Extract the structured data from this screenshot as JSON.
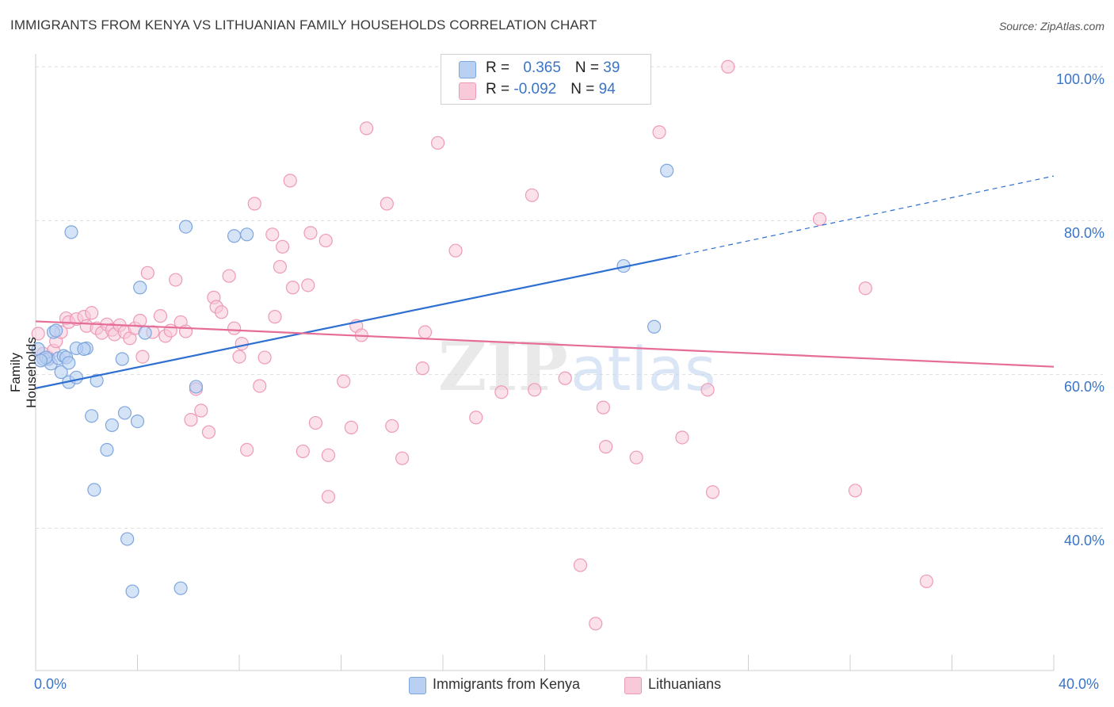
{
  "title": "IMMIGRANTS FROM KENYA VS LITHUANIAN FAMILY HOUSEHOLDS CORRELATION CHART",
  "source": "Source: ZipAtlas.com",
  "watermark": "ZIPatlas",
  "legend": {
    "row1": {
      "r_label": "R = ",
      "r_value": "0.365",
      "n_label": "N = ",
      "n_value": "39"
    },
    "row2": {
      "r_label": "R = ",
      "r_value": "-0.092",
      "n_label": "N = ",
      "n_value": "94"
    }
  },
  "bottom_legend": {
    "series1": "Immigrants from Kenya",
    "series2": "Lithuanians"
  },
  "colors": {
    "kenya_fill": "#b9d0f2",
    "kenya_stroke": "#7ea6de",
    "kenya_line": "#2e6fd1",
    "lith_fill": "#f8c9d8",
    "lith_stroke": "#ee9ab7",
    "lith_line": "#e56d97",
    "grid": "#dddddd",
    "axis_text": "#3a74c8"
  },
  "chart_data": {
    "type": "scatter",
    "title": "IMMIGRANTS FROM KENYA VS LITHUANIAN FAMILY HOUSEHOLDS CORRELATION CHART",
    "xlabel": "",
    "ylabel": "Family Households",
    "x_tick_labels": [
      "0.0%",
      "40.0%"
    ],
    "y_tick_labels": [
      "100.0%",
      "80.0%",
      "60.0%",
      "40.0%"
    ],
    "xlim": [
      0,
      40
    ],
    "ylim": [
      21.5,
      102.5
    ],
    "y_ticks": [
      100,
      80,
      60,
      40
    ],
    "grid": true,
    "legend_position": "top-center",
    "series": [
      {
        "name": "Immigrants from Kenya",
        "R": 0.365,
        "N": 39,
        "trend": {
          "x0": 0,
          "y0": 58.2,
          "x1": 25.2,
          "y1": 75.4,
          "x_dash_end": 40,
          "y_dash_end": 85.8
        },
        "points": [
          [
            0.1,
            63.3
          ],
          [
            0.3,
            62.0
          ],
          [
            0.5,
            62.0
          ],
          [
            0.6,
            61.4
          ],
          [
            0.7,
            65.5
          ],
          [
            0.8,
            65.7
          ],
          [
            0.9,
            62.1
          ],
          [
            1.0,
            60.3
          ],
          [
            1.1,
            62.4
          ],
          [
            1.2,
            62.2
          ],
          [
            1.3,
            61.5
          ],
          [
            1.3,
            59.0
          ],
          [
            1.4,
            78.5
          ],
          [
            1.6,
            59.6
          ],
          [
            2.0,
            63.4
          ],
          [
            2.2,
            54.6
          ],
          [
            2.3,
            45.0
          ],
          [
            2.8,
            50.2
          ],
          [
            3.0,
            53.4
          ],
          [
            3.4,
            62.0
          ],
          [
            3.5,
            55.0
          ],
          [
            3.6,
            38.6
          ],
          [
            3.8,
            31.8
          ],
          [
            4.0,
            53.9
          ],
          [
            4.1,
            71.3
          ],
          [
            4.3,
            65.4
          ],
          [
            5.7,
            32.2
          ],
          [
            5.9,
            79.2
          ],
          [
            6.3,
            58.4
          ],
          [
            7.8,
            78.0
          ],
          [
            8.3,
            78.2
          ],
          [
            2.4,
            59.2
          ],
          [
            1.6,
            63.4
          ],
          [
            0.4,
            62.2
          ],
          [
            0.2,
            61.8
          ],
          [
            1.9,
            63.3
          ],
          [
            23.1,
            74.1
          ],
          [
            24.3,
            66.2
          ],
          [
            24.8,
            86.5
          ]
        ]
      },
      {
        "name": "Lithuanians",
        "R": -0.092,
        "N": 94,
        "trend": {
          "x0": 0,
          "y0": 66.9,
          "x1": 40,
          "y1": 61.0
        },
        "points": [
          [
            0.1,
            65.3
          ],
          [
            0.3,
            62.7
          ],
          [
            0.5,
            62.2
          ],
          [
            0.7,
            63.1
          ],
          [
            0.8,
            64.3
          ],
          [
            1.0,
            65.5
          ],
          [
            1.2,
            67.3
          ],
          [
            1.3,
            66.8
          ],
          [
            1.6,
            67.2
          ],
          [
            1.9,
            67.5
          ],
          [
            2.0,
            66.3
          ],
          [
            2.2,
            68.0
          ],
          [
            2.4,
            66.0
          ],
          [
            2.6,
            65.4
          ],
          [
            2.8,
            66.5
          ],
          [
            3.0,
            65.8
          ],
          [
            3.1,
            65.2
          ],
          [
            3.3,
            66.4
          ],
          [
            3.5,
            65.5
          ],
          [
            3.7,
            64.7
          ],
          [
            3.9,
            66.0
          ],
          [
            4.1,
            67.0
          ],
          [
            4.2,
            62.3
          ],
          [
            4.4,
            73.2
          ],
          [
            4.6,
            65.5
          ],
          [
            4.9,
            67.6
          ],
          [
            5.1,
            65.0
          ],
          [
            5.3,
            65.7
          ],
          [
            5.5,
            72.3
          ],
          [
            5.7,
            66.8
          ],
          [
            5.9,
            65.6
          ],
          [
            6.1,
            54.1
          ],
          [
            6.3,
            58.1
          ],
          [
            6.5,
            55.3
          ],
          [
            6.8,
            52.5
          ],
          [
            7.0,
            70.0
          ],
          [
            7.1,
            68.8
          ],
          [
            7.3,
            68.1
          ],
          [
            7.6,
            72.8
          ],
          [
            7.8,
            66.0
          ],
          [
            8.0,
            62.3
          ],
          [
            8.1,
            64.0
          ],
          [
            8.3,
            50.2
          ],
          [
            8.6,
            82.2
          ],
          [
            8.8,
            58.5
          ],
          [
            9.0,
            62.2
          ],
          [
            9.3,
            78.2
          ],
          [
            9.4,
            67.5
          ],
          [
            9.6,
            74.0
          ],
          [
            9.7,
            76.6
          ],
          [
            10.0,
            85.2
          ],
          [
            10.1,
            71.3
          ],
          [
            10.5,
            50.0
          ],
          [
            10.7,
            71.6
          ],
          [
            10.8,
            78.4
          ],
          [
            11.0,
            53.7
          ],
          [
            11.4,
            77.4
          ],
          [
            11.5,
            49.5
          ],
          [
            11.5,
            44.1
          ],
          [
            12.1,
            59.1
          ],
          [
            12.4,
            53.1
          ],
          [
            12.6,
            66.3
          ],
          [
            12.8,
            65.1
          ],
          [
            13.0,
            92.0
          ],
          [
            13.8,
            82.2
          ],
          [
            14.0,
            53.3
          ],
          [
            14.4,
            49.1
          ],
          [
            15.2,
            60.8
          ],
          [
            15.3,
            65.5
          ],
          [
            15.8,
            90.1
          ],
          [
            16.5,
            76.1
          ],
          [
            17.3,
            54.4
          ],
          [
            17.8,
            100.0
          ],
          [
            18.3,
            57.7
          ],
          [
            19.5,
            83.3
          ],
          [
            19.6,
            58.0
          ],
          [
            20.8,
            59.5
          ],
          [
            21.4,
            35.2
          ],
          [
            22.0,
            27.6
          ],
          [
            22.3,
            55.7
          ],
          [
            22.4,
            50.6
          ],
          [
            23.6,
            49.2
          ],
          [
            24.5,
            91.5
          ],
          [
            25.4,
            51.8
          ],
          [
            26.4,
            58.0
          ],
          [
            26.6,
            44.7
          ],
          [
            27.2,
            100.0
          ],
          [
            30.8,
            80.2
          ],
          [
            32.2,
            44.9
          ],
          [
            32.6,
            71.2
          ],
          [
            35.0,
            33.1
          ],
          [
            20.6,
            100.0
          ],
          [
            18.0,
            100.0
          ],
          [
            17.4,
            100.0
          ]
        ]
      }
    ]
  }
}
